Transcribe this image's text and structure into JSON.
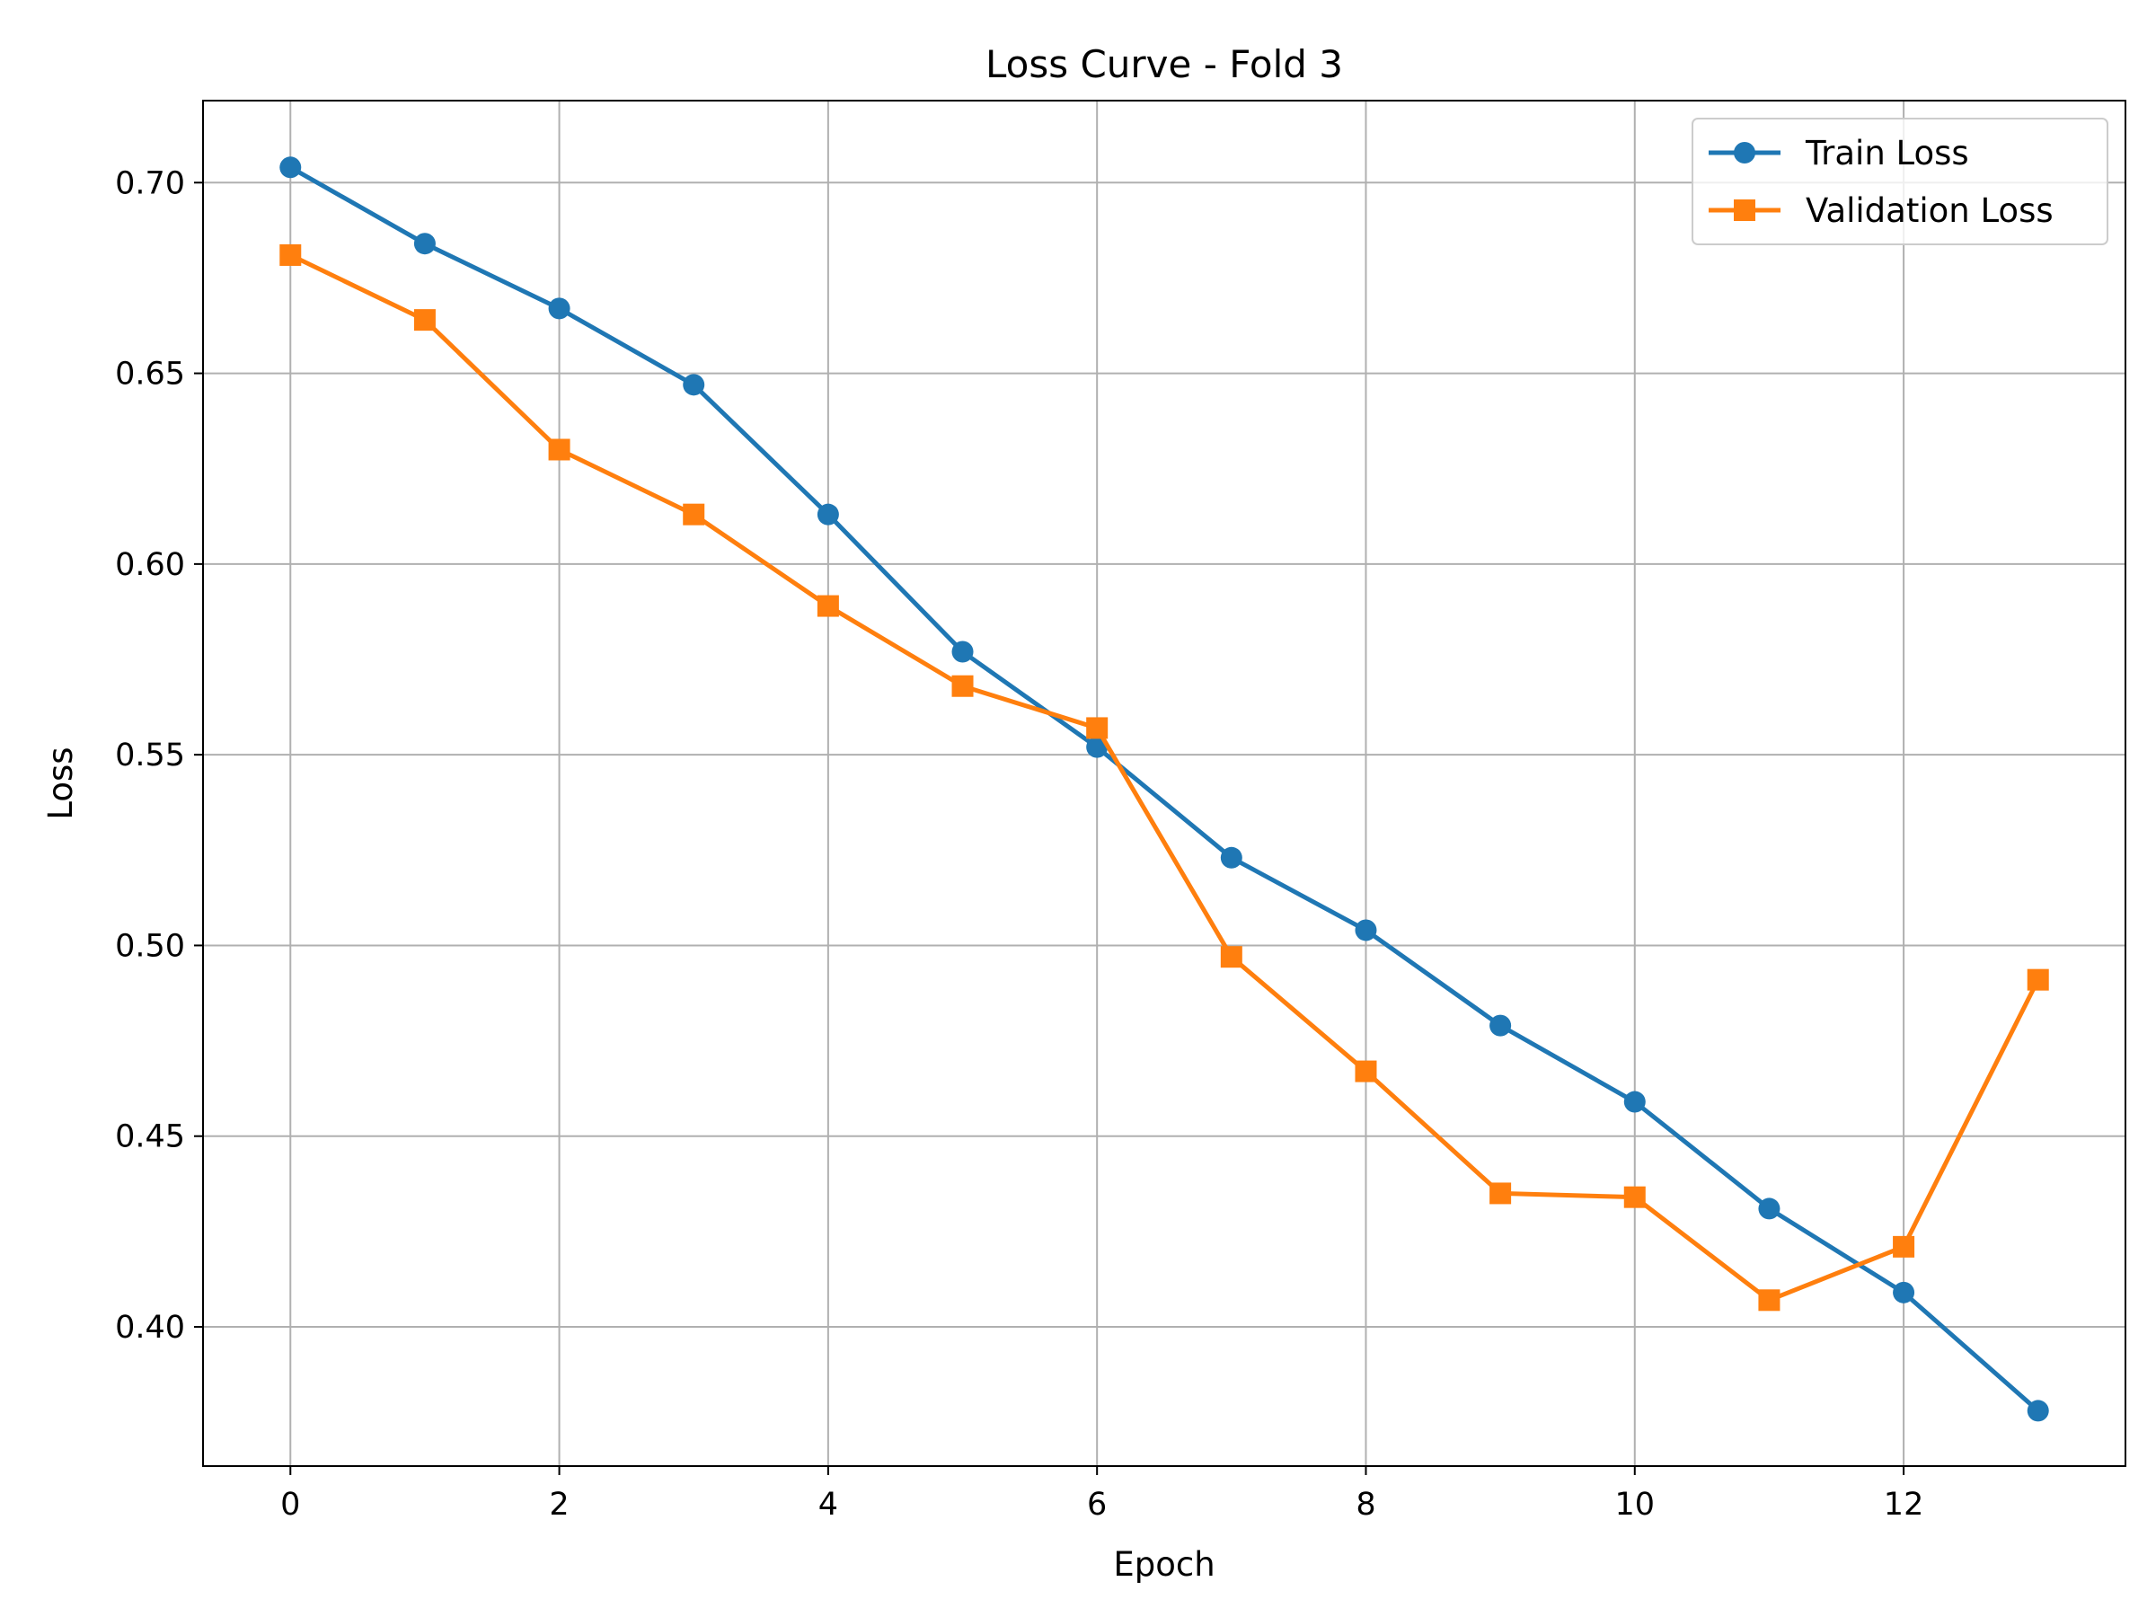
{
  "chart_data": {
    "type": "line",
    "title": "Loss Curve - Fold 3",
    "xlabel": "Epoch",
    "ylabel": "Loss",
    "x": [
      0,
      1,
      2,
      3,
      4,
      5,
      6,
      7,
      8,
      9,
      10,
      11,
      12,
      13
    ],
    "xticks": [
      0,
      2,
      4,
      6,
      8,
      10,
      12
    ],
    "xtick_labels": [
      "0",
      "2",
      "4",
      "6",
      "8",
      "10",
      "12"
    ],
    "yticks": [
      0.4,
      0.45,
      0.5,
      0.55,
      0.6,
      0.65,
      0.7
    ],
    "ytick_labels": [
      "0.40",
      "0.45",
      "0.50",
      "0.55",
      "0.60",
      "0.65",
      "0.70"
    ],
    "xlim": [
      -0.65,
      13.65
    ],
    "ylim": [
      0.3635,
      0.7215
    ],
    "grid": true,
    "legend_position": "top-right",
    "series": [
      {
        "name": "Train Loss",
        "color": "#1f77b4",
        "marker": "circle",
        "values": [
          0.704,
          0.684,
          0.667,
          0.647,
          0.613,
          0.577,
          0.552,
          0.523,
          0.504,
          0.479,
          0.459,
          0.431,
          0.409,
          0.378
        ]
      },
      {
        "name": "Validation Loss",
        "color": "#ff7f0e",
        "marker": "square",
        "values": [
          0.681,
          0.664,
          0.63,
          0.613,
          0.589,
          0.568,
          0.557,
          0.497,
          0.467,
          0.435,
          0.434,
          0.407,
          0.421,
          0.491
        ]
      }
    ]
  }
}
